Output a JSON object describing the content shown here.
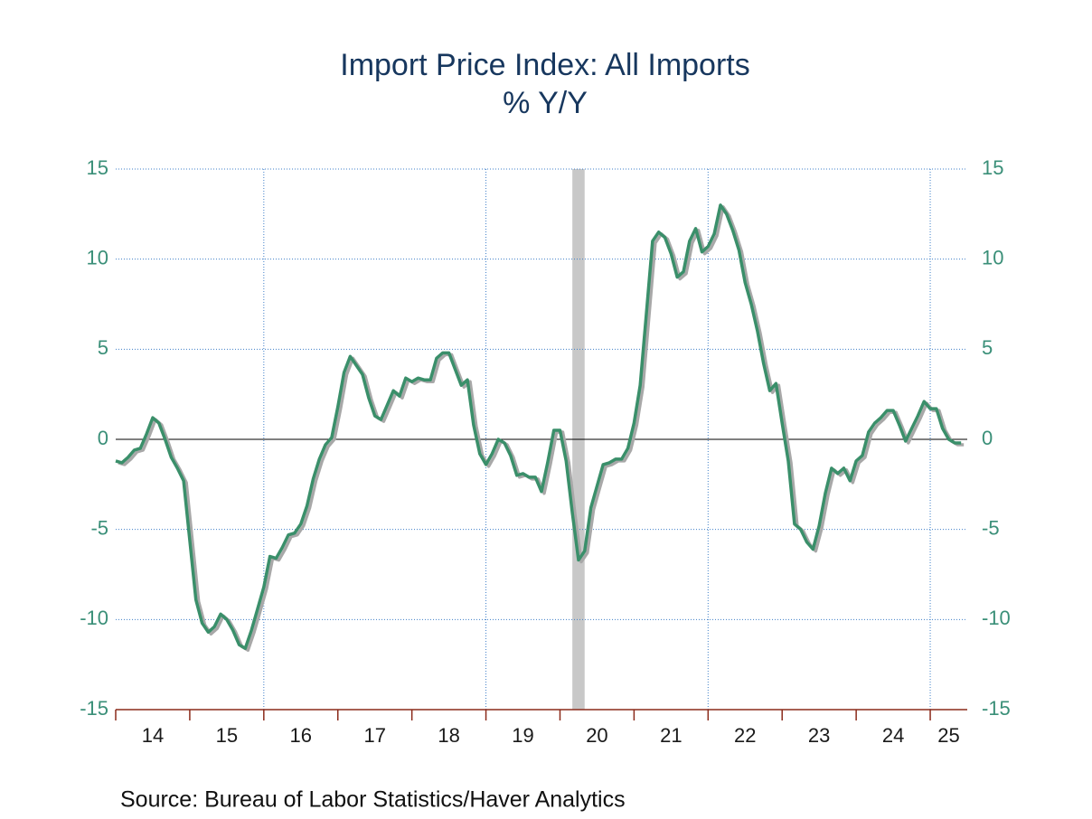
{
  "chart_data": {
    "type": "line",
    "title": "Import Price Index: All Imports",
    "subtitle": "% Y/Y",
    "source": "Source:  Bureau of Labor Statistics/Haver Analytics",
    "x": [
      2014.0,
      2014.083,
      2014.167,
      2014.25,
      2014.333,
      2014.417,
      2014.5,
      2014.583,
      2014.667,
      2014.75,
      2014.833,
      2014.917,
      2015.0,
      2015.083,
      2015.167,
      2015.25,
      2015.333,
      2015.417,
      2015.5,
      2015.583,
      2015.667,
      2015.75,
      2015.833,
      2015.917,
      2016.0,
      2016.083,
      2016.167,
      2016.25,
      2016.333,
      2016.417,
      2016.5,
      2016.583,
      2016.667,
      2016.75,
      2016.833,
      2016.917,
      2017.0,
      2017.083,
      2017.167,
      2017.25,
      2017.333,
      2017.417,
      2017.5,
      2017.583,
      2017.667,
      2017.75,
      2017.833,
      2017.917,
      2018.0,
      2018.083,
      2018.167,
      2018.25,
      2018.333,
      2018.417,
      2018.5,
      2018.583,
      2018.667,
      2018.75,
      2018.833,
      2018.917,
      2019.0,
      2019.083,
      2019.167,
      2019.25,
      2019.333,
      2019.417,
      2019.5,
      2019.583,
      2019.667,
      2019.75,
      2019.833,
      2019.917,
      2020.0,
      2020.083,
      2020.167,
      2020.25,
      2020.333,
      2020.417,
      2020.5,
      2020.583,
      2020.667,
      2020.75,
      2020.833,
      2020.917,
      2021.0,
      2021.083,
      2021.167,
      2021.25,
      2021.333,
      2021.417,
      2021.5,
      2021.583,
      2021.667,
      2021.75,
      2021.833,
      2021.917,
      2022.0,
      2022.083,
      2022.167,
      2022.25,
      2022.333,
      2022.417,
      2022.5,
      2022.583,
      2022.667,
      2022.75,
      2022.833,
      2022.917,
      2023.0,
      2023.083,
      2023.167,
      2023.25,
      2023.333,
      2023.417,
      2023.5,
      2023.583,
      2023.667,
      2023.75,
      2023.833,
      2023.917,
      2024.0,
      2024.083,
      2024.167,
      2024.25,
      2024.333,
      2024.417,
      2024.5,
      2024.583,
      2024.667,
      2024.75,
      2024.833,
      2024.917,
      2025.0,
      2025.083,
      2025.167,
      2025.25,
      2025.333,
      2025.417
    ],
    "series": [
      {
        "color": "#3a8f6a",
        "values": [
          -1.2,
          -1.3,
          -1.0,
          -0.6,
          -0.5,
          0.3,
          1.2,
          0.9,
          0.0,
          -1.0,
          -1.6,
          -2.3,
          -5.6,
          -8.9,
          -10.2,
          -10.7,
          -10.4,
          -9.7,
          -10.0,
          -10.6,
          -11.4,
          -11.6,
          -10.6,
          -9.4,
          -8.2,
          -6.5,
          -6.6,
          -6.0,
          -5.3,
          -5.2,
          -4.7,
          -3.7,
          -2.2,
          -1.1,
          -0.3,
          0.1,
          1.8,
          3.7,
          4.6,
          4.1,
          3.6,
          2.3,
          1.3,
          1.1,
          1.9,
          2.7,
          2.4,
          3.4,
          3.2,
          3.4,
          3.3,
          3.3,
          4.5,
          4.8,
          4.8,
          3.9,
          3.0,
          3.3,
          0.8,
          -0.8,
          -1.4,
          -0.8,
          0.0,
          -0.2,
          -0.9,
          -2.0,
          -1.9,
          -2.1,
          -2.1,
          -2.9,
          -1.3,
          0.5,
          0.5,
          -1.2,
          -4.1,
          -6.7,
          -6.2,
          -3.8,
          -2.6,
          -1.4,
          -1.3,
          -1.1,
          -1.1,
          -0.5,
          0.9,
          3.0,
          7.0,
          11.0,
          11.5,
          11.2,
          10.3,
          9.0,
          9.3,
          11.0,
          11.7,
          10.4,
          10.7,
          11.4,
          13.0,
          12.5,
          11.6,
          10.5,
          8.7,
          7.5,
          6.0,
          4.2,
          2.7,
          3.1,
          0.9,
          -1.2,
          -4.7,
          -5.0,
          -5.7,
          -6.1,
          -4.8,
          -3.0,
          -1.6,
          -1.9,
          -1.6,
          -2.3,
          -1.2,
          -0.9,
          0.4,
          0.9,
          1.2,
          1.6,
          1.6,
          0.8,
          -0.1,
          0.6,
          1.3,
          2.1,
          1.7,
          1.7,
          0.6,
          0.0,
          -0.2,
          -0.2
        ]
      }
    ],
    "xlim": [
      2014,
      2025.5
    ],
    "xticks": [
      {
        "value": 2014,
        "label": "14"
      },
      {
        "value": 2015,
        "label": "15"
      },
      {
        "value": 2016,
        "label": "16"
      },
      {
        "value": 2017,
        "label": "17"
      },
      {
        "value": 2018,
        "label": "18"
      },
      {
        "value": 2019,
        "label": "19"
      },
      {
        "value": 2020,
        "label": "20"
      },
      {
        "value": 2021,
        "label": "21"
      },
      {
        "value": 2022,
        "label": "22"
      },
      {
        "value": 2023,
        "label": "23"
      },
      {
        "value": 2024,
        "label": "24"
      },
      {
        "value": 2025,
        "label": "25"
      }
    ],
    "xgrid": [
      2016,
      2019,
      2022,
      2025
    ],
    "ylim": [
      -15,
      15
    ],
    "yticks": [
      -15,
      -10,
      -5,
      0,
      5,
      10,
      15
    ],
    "recession": {
      "start": 2020.167,
      "end": 2020.333
    },
    "grid": true
  }
}
